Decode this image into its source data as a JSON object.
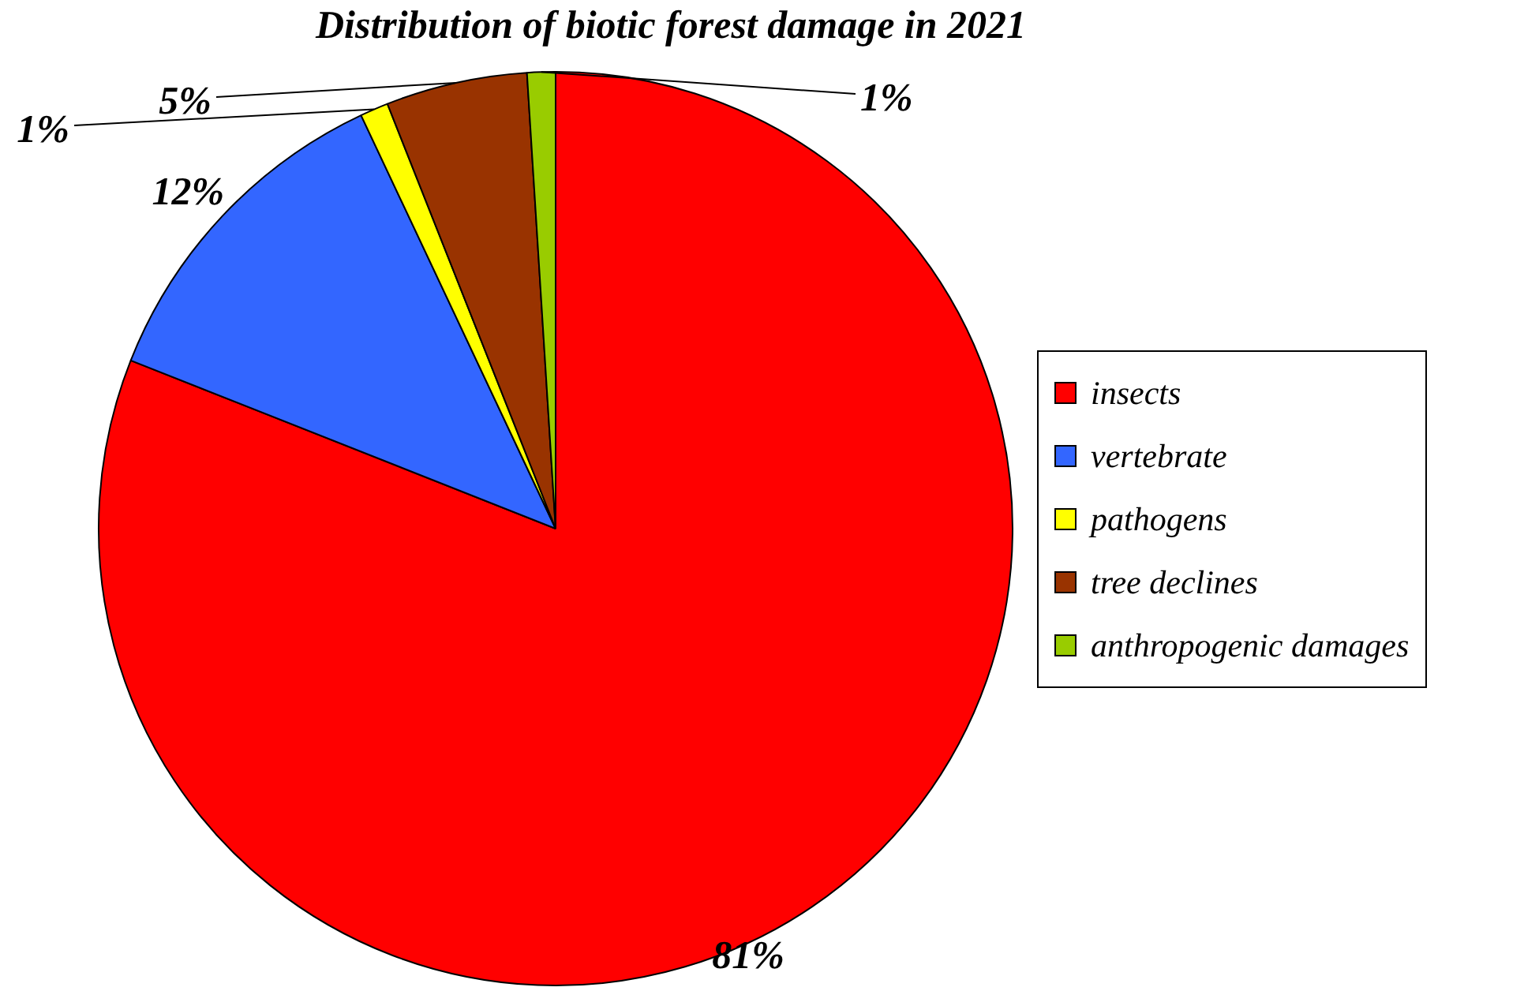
{
  "chart_data": {
    "type": "pie",
    "title": "Distribution of biotic forest damage in 2021",
    "categories": [
      "insects",
      "vertebrate",
      "pathogens",
      "tree declines",
      "anthropogenic damages"
    ],
    "values": [
      81,
      12,
      1,
      5,
      1
    ],
    "colors": [
      "#ff0000",
      "#3366ff",
      "#ffff00",
      "#993300",
      "#99cc00"
    ],
    "value_labels": [
      "81%",
      "12%",
      "1%",
      "5%",
      "1%"
    ],
    "legend": "right"
  }
}
